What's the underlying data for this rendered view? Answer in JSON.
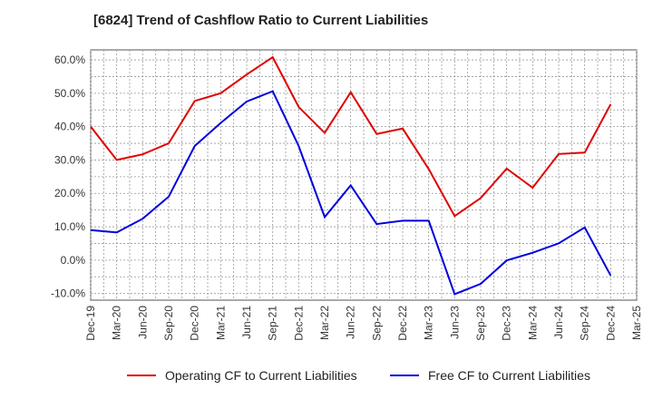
{
  "chart_data": {
    "type": "line",
    "title": "[6824]  Trend of Cashflow Ratio to Current Liabilities",
    "xlabel": "",
    "ylabel": "",
    "categories": [
      "Dec-19",
      "Mar-20",
      "Jun-20",
      "Sep-20",
      "Dec-20",
      "Mar-21",
      "Jun-21",
      "Sep-21",
      "Dec-21",
      "Mar-22",
      "Jun-22",
      "Sep-22",
      "Dec-22",
      "Mar-23",
      "Jun-23",
      "Sep-23",
      "Dec-23",
      "Mar-24",
      "Jun-24",
      "Sep-24",
      "Dec-24",
      "Mar-25"
    ],
    "y_ticks": [
      "60.0%",
      "50.0%",
      "40.0%",
      "30.0%",
      "20.0%",
      "10.0%",
      "0.0%",
      "-10.0%"
    ],
    "ylim": [
      -12,
      63
    ],
    "grid": true,
    "legend_position": "bottom",
    "series": [
      {
        "name": "Operating CF to Current Liabilities",
        "color": "#e00000",
        "values": [
          40.0,
          30.0,
          31.7,
          35.0,
          47.7,
          50.0,
          55.6,
          60.8,
          45.9,
          38.1,
          50.3,
          37.8,
          39.4,
          27.3,
          13.2,
          18.6,
          27.4,
          21.7,
          31.8,
          32.2,
          46.7,
          null
        ]
      },
      {
        "name": "Free CF to Current Liabilities",
        "color": "#0000dd",
        "values": [
          9.0,
          8.3,
          12.4,
          19.0,
          34.2,
          41.1,
          47.5,
          50.6,
          34.2,
          12.9,
          22.4,
          10.8,
          11.8,
          11.8,
          -10.2,
          -7.1,
          -0.1,
          2.2,
          5.0,
          9.8,
          -4.6,
          null
        ]
      }
    ]
  }
}
